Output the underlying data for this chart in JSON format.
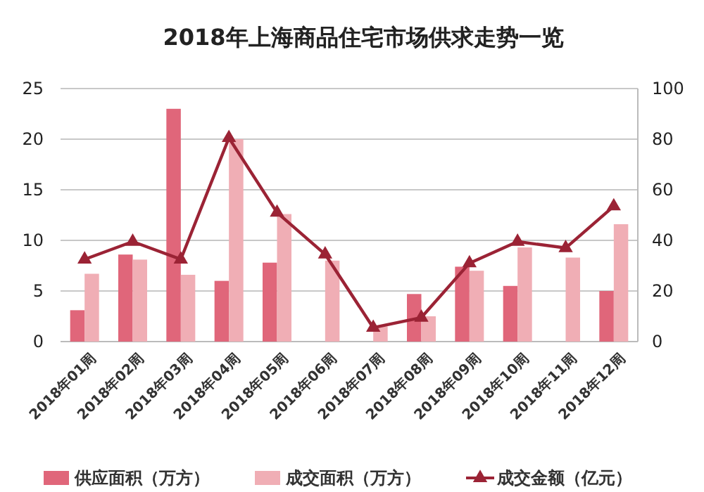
{
  "chart_data": {
    "type": "bar",
    "title": "2018年上海商品住宅市场供求走势一览",
    "categories": [
      "2018年01周",
      "2018年02周",
      "2018年03周",
      "2018年04周",
      "2018年05周",
      "2018年06周",
      "2018年07周",
      "2018年08周",
      "2018年09周",
      "2018年10周",
      "2018年11周",
      "2018年12周"
    ],
    "series": [
      {
        "name": "供应面积（万方）",
        "color": "#e0667a",
        "values": [
          3.1,
          8.6,
          23,
          6,
          7.8,
          null,
          null,
          4.7,
          7.4,
          5.5,
          null,
          5.0
        ]
      },
      {
        "name": "成交面积（万方）",
        "color": "#f0aeb5",
        "values": [
          6.7,
          8.1,
          6.6,
          20,
          12.6,
          8,
          1.5,
          2.5,
          7.0,
          9.3,
          8.3,
          11.6
        ]
      },
      {
        "name": "成交金额（亿元）",
        "type": "line",
        "axis": "y2",
        "color": "#9b2335",
        "marker": "triangle",
        "values": [
          32.5,
          39.5,
          32.5,
          80.5,
          51,
          34.5,
          5.5,
          9.5,
          31,
          39.5,
          37,
          53.5
        ]
      }
    ],
    "ylim": [
      0,
      25
    ],
    "yticks": [
      0,
      5,
      10,
      15,
      20,
      25
    ],
    "y2lim": [
      0,
      100
    ],
    "y2ticks": [
      0,
      20,
      40,
      60,
      80,
      100
    ],
    "grid": "y",
    "legend": "bottom"
  }
}
